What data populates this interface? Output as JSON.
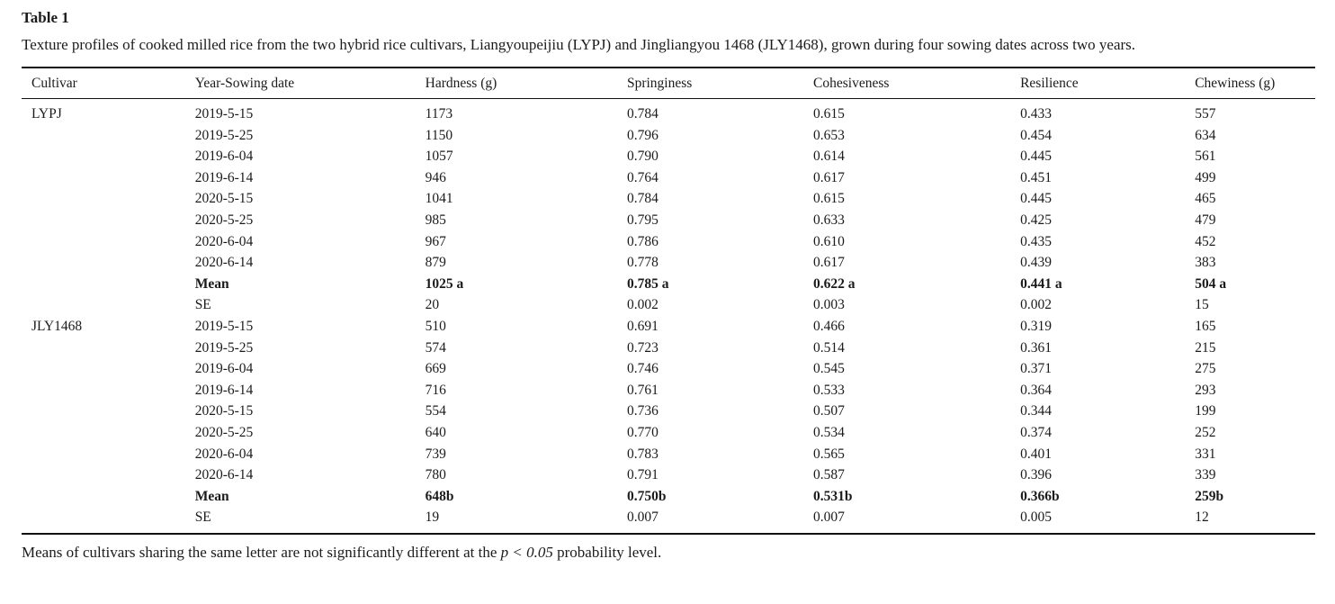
{
  "caption": {
    "label": "Table 1",
    "text": "Texture profiles of cooked milled rice from the two hybrid rice cultivars, Liangyoupeijiu (LYPJ) and Jingliangyou 1468 (JLY1468), grown during four sowing dates across two years."
  },
  "table": {
    "columns": [
      "Cultivar",
      "Year-Sowing date",
      "Hardness (g)",
      "Springiness",
      "Cohesiveness",
      "Resilience",
      "Chewiness (g)"
    ],
    "rows": [
      {
        "cultivar": "LYPJ",
        "date": "2019-5-15",
        "hardness": "1173",
        "springiness": "0.784",
        "cohesiveness": "0.615",
        "resilience": "0.433",
        "chewiness": "557",
        "bold": false
      },
      {
        "cultivar": "",
        "date": "2019-5-25",
        "hardness": "1150",
        "springiness": "0.796",
        "cohesiveness": "0.653",
        "resilience": "0.454",
        "chewiness": "634",
        "bold": false
      },
      {
        "cultivar": "",
        "date": "2019-6-04",
        "hardness": "1057",
        "springiness": "0.790",
        "cohesiveness": "0.614",
        "resilience": "0.445",
        "chewiness": "561",
        "bold": false
      },
      {
        "cultivar": "",
        "date": "2019-6-14",
        "hardness": "946",
        "springiness": "0.764",
        "cohesiveness": "0.617",
        "resilience": "0.451",
        "chewiness": "499",
        "bold": false
      },
      {
        "cultivar": "",
        "date": "2020-5-15",
        "hardness": "1041",
        "springiness": "0.784",
        "cohesiveness": "0.615",
        "resilience": "0.445",
        "chewiness": "465",
        "bold": false
      },
      {
        "cultivar": "",
        "date": "2020-5-25",
        "hardness": "985",
        "springiness": "0.795",
        "cohesiveness": "0.633",
        "resilience": "0.425",
        "chewiness": "479",
        "bold": false
      },
      {
        "cultivar": "",
        "date": "2020-6-04",
        "hardness": "967",
        "springiness": "0.786",
        "cohesiveness": "0.610",
        "resilience": "0.435",
        "chewiness": "452",
        "bold": false
      },
      {
        "cultivar": "",
        "date": "2020-6-14",
        "hardness": "879",
        "springiness": "0.778",
        "cohesiveness": "0.617",
        "resilience": "0.439",
        "chewiness": "383",
        "bold": false
      },
      {
        "cultivar": "",
        "date": "Mean",
        "hardness": "1025 a",
        "springiness": "0.785 a",
        "cohesiveness": "0.622 a",
        "resilience": "0.441 a",
        "chewiness": "504 a",
        "bold": true
      },
      {
        "cultivar": "",
        "date": "SE",
        "hardness": "20",
        "springiness": "0.002",
        "cohesiveness": "0.003",
        "resilience": "0.002",
        "chewiness": "15",
        "bold": false
      },
      {
        "cultivar": "JLY1468",
        "date": "2019-5-15",
        "hardness": "510",
        "springiness": "0.691",
        "cohesiveness": "0.466",
        "resilience": "0.319",
        "chewiness": "165",
        "bold": false
      },
      {
        "cultivar": "",
        "date": "2019-5-25",
        "hardness": "574",
        "springiness": "0.723",
        "cohesiveness": "0.514",
        "resilience": "0.361",
        "chewiness": "215",
        "bold": false
      },
      {
        "cultivar": "",
        "date": "2019-6-04",
        "hardness": "669",
        "springiness": "0.746",
        "cohesiveness": "0.545",
        "resilience": "0.371",
        "chewiness": "275",
        "bold": false
      },
      {
        "cultivar": "",
        "date": "2019-6-14",
        "hardness": "716",
        "springiness": "0.761",
        "cohesiveness": "0.533",
        "resilience": "0.364",
        "chewiness": "293",
        "bold": false
      },
      {
        "cultivar": "",
        "date": "2020-5-15",
        "hardness": "554",
        "springiness": "0.736",
        "cohesiveness": "0.507",
        "resilience": "0.344",
        "chewiness": "199",
        "bold": false
      },
      {
        "cultivar": "",
        "date": "2020-5-25",
        "hardness": "640",
        "springiness": "0.770",
        "cohesiveness": "0.534",
        "resilience": "0.374",
        "chewiness": "252",
        "bold": false
      },
      {
        "cultivar": "",
        "date": "2020-6-04",
        "hardness": "739",
        "springiness": "0.783",
        "cohesiveness": "0.565",
        "resilience": "0.401",
        "chewiness": "331",
        "bold": false
      },
      {
        "cultivar": "",
        "date": "2020-6-14",
        "hardness": "780",
        "springiness": "0.791",
        "cohesiveness": "0.587",
        "resilience": "0.396",
        "chewiness": "339",
        "bold": false
      },
      {
        "cultivar": "",
        "date": "Mean",
        "hardness": "648b",
        "springiness": "0.750b",
        "cohesiveness": "0.531b",
        "resilience": "0.366b",
        "chewiness": "259b",
        "bold": true
      },
      {
        "cultivar": "",
        "date": "SE",
        "hardness": "19",
        "springiness": "0.007",
        "cohesiveness": "0.007",
        "resilience": "0.005",
        "chewiness": "12",
        "bold": false
      }
    ]
  },
  "footnote": {
    "prefix": "Means of cultivars sharing the same letter are not significantly different at the ",
    "italic": "p < 0.05",
    "suffix": " probability level."
  },
  "colors": {
    "text": "#1b1b1b",
    "rule": "#101010",
    "background": "#ffffff"
  }
}
